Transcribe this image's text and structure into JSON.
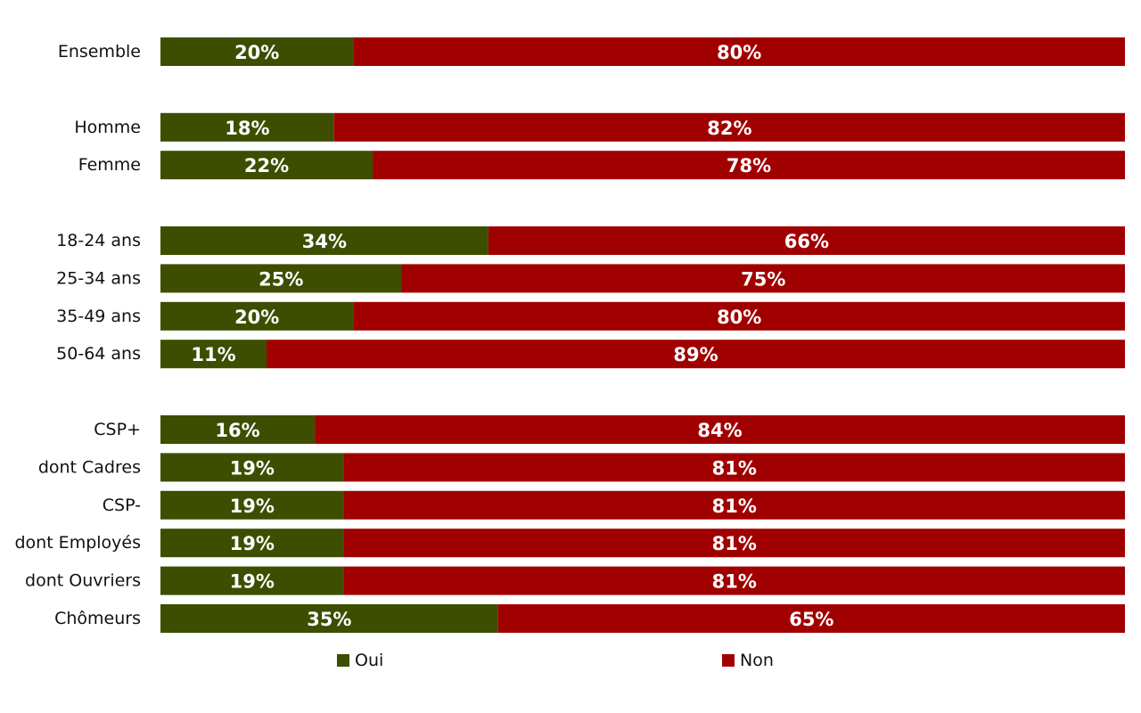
{
  "chart_data": {
    "type": "bar",
    "orientation": "horizontal",
    "stacked": true,
    "value_format": "percent",
    "xlim": [
      0,
      100
    ],
    "grid": false,
    "legend_placement": "bottom",
    "categories": [
      "Ensemble",
      "Homme",
      "Femme",
      "18-24 ans",
      "25-34 ans",
      "35-49 ans",
      "50-64 ans",
      "CSP+",
      "dont Cadres",
      "CSP-",
      "dont Employés",
      "dont Ouvriers",
      "Chômeurs"
    ],
    "groups": [
      [
        "Ensemble"
      ],
      [
        "Homme",
        "Femme"
      ],
      [
        "18-24 ans",
        "25-34 ans",
        "35-49 ans",
        "50-64 ans"
      ],
      [
        "CSP+",
        "dont Cadres",
        "CSP-",
        "dont Employés",
        "dont Ouvriers",
        "Chômeurs"
      ]
    ],
    "series": [
      {
        "name": "Oui",
        "color": "#3d4e00",
        "values": [
          20,
          18,
          22,
          34,
          25,
          20,
          11,
          16,
          19,
          19,
          19,
          19,
          35
        ]
      },
      {
        "name": "Non",
        "color": "#a10001",
        "values": [
          80,
          82,
          78,
          66,
          75,
          80,
          89,
          84,
          81,
          81,
          81,
          81,
          65
        ]
      }
    ]
  }
}
